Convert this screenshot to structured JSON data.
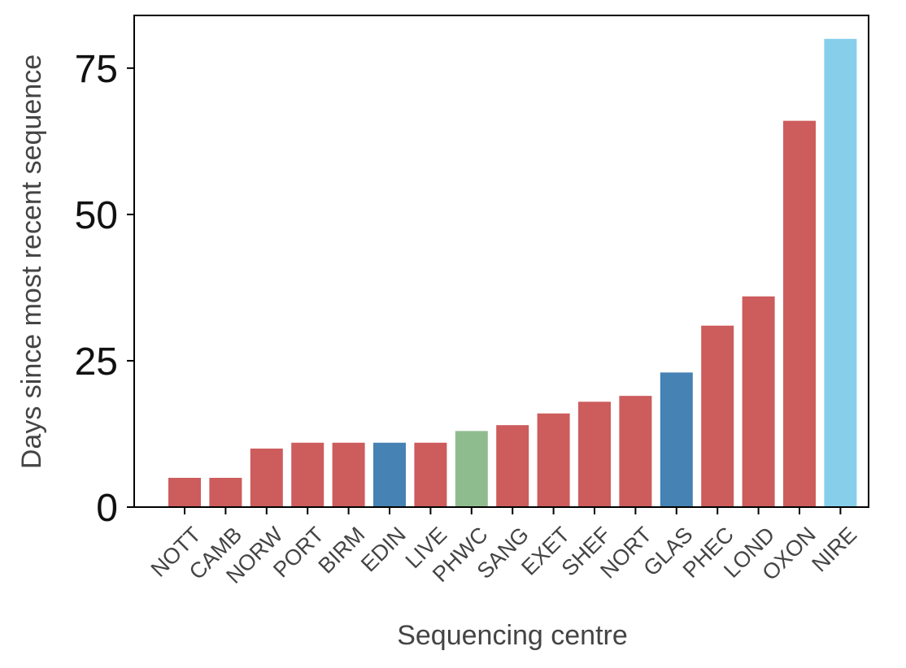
{
  "chart_data": {
    "type": "bar",
    "title": "",
    "xlabel": "Sequencing centre",
    "ylabel": "Days since most recent sequence",
    "ylim": [
      0,
      84
    ],
    "yticks": [
      0,
      25,
      50,
      75
    ],
    "grid": false,
    "categories": [
      "NOTT",
      "CAMB",
      "NORW",
      "PORT",
      "BIRM",
      "EDIN",
      "LIVE",
      "PHWC",
      "SANG",
      "EXET",
      "SHEF",
      "NORT",
      "GLAS",
      "PHEC",
      "LOND",
      "OXON",
      "NIRE"
    ],
    "values": [
      5,
      5,
      10,
      11,
      11,
      11,
      11,
      13,
      14,
      16,
      18,
      19,
      23,
      31,
      36,
      66,
      80
    ],
    "colors": [
      "#cd5c5c",
      "#cd5c5c",
      "#cd5c5c",
      "#cd5c5c",
      "#cd5c5c",
      "#4682b4",
      "#cd5c5c",
      "#8fbc8f",
      "#cd5c5c",
      "#cd5c5c",
      "#cd5c5c",
      "#cd5c5c",
      "#4682b4",
      "#cd5c5c",
      "#cd5c5c",
      "#cd5c5c",
      "#87ceeb"
    ]
  }
}
